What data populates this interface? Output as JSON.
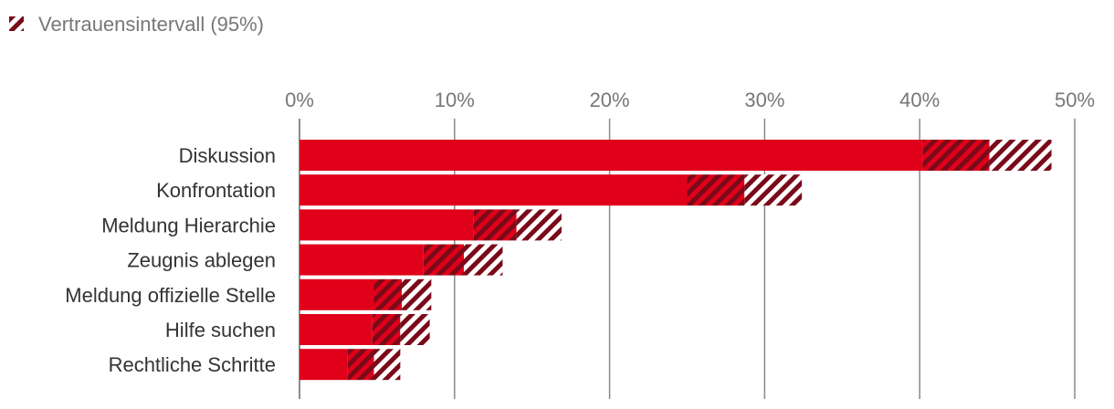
{
  "legend": {
    "label": "Vertrauensintervall (95%)"
  },
  "colors": {
    "bar": "#e0001a",
    "ci": "#7a0a19",
    "grid": "#888888",
    "tick_text": "#777777",
    "label_text": "#333333"
  },
  "chart_data": {
    "type": "bar",
    "orientation": "horizontal",
    "title": "",
    "xlabel": "",
    "ylabel": "",
    "xlim": [
      0,
      50
    ],
    "x_ticks": [
      "0%",
      "10%",
      "20%",
      "30%",
      "40%",
      "50%"
    ],
    "x_tick_values": [
      0,
      10,
      20,
      30,
      40,
      50
    ],
    "grid": true,
    "legend_position": "top-left",
    "categories": [
      "Diskussion",
      "Konfrontation",
      "Meldung Hierarchie",
      "Zeugnis ablegen",
      "Meldung offizielle Stelle",
      "Hilfe suchen",
      "Rechtliche Schritte"
    ],
    "values": [
      44.5,
      28.7,
      14.0,
      10.6,
      6.6,
      6.5,
      4.8
    ],
    "ci_lower": [
      40.2,
      25.0,
      11.2,
      8.0,
      4.8,
      4.7,
      3.1
    ],
    "ci_upper": [
      48.5,
      32.4,
      16.9,
      13.1,
      8.5,
      8.4,
      6.5
    ]
  }
}
